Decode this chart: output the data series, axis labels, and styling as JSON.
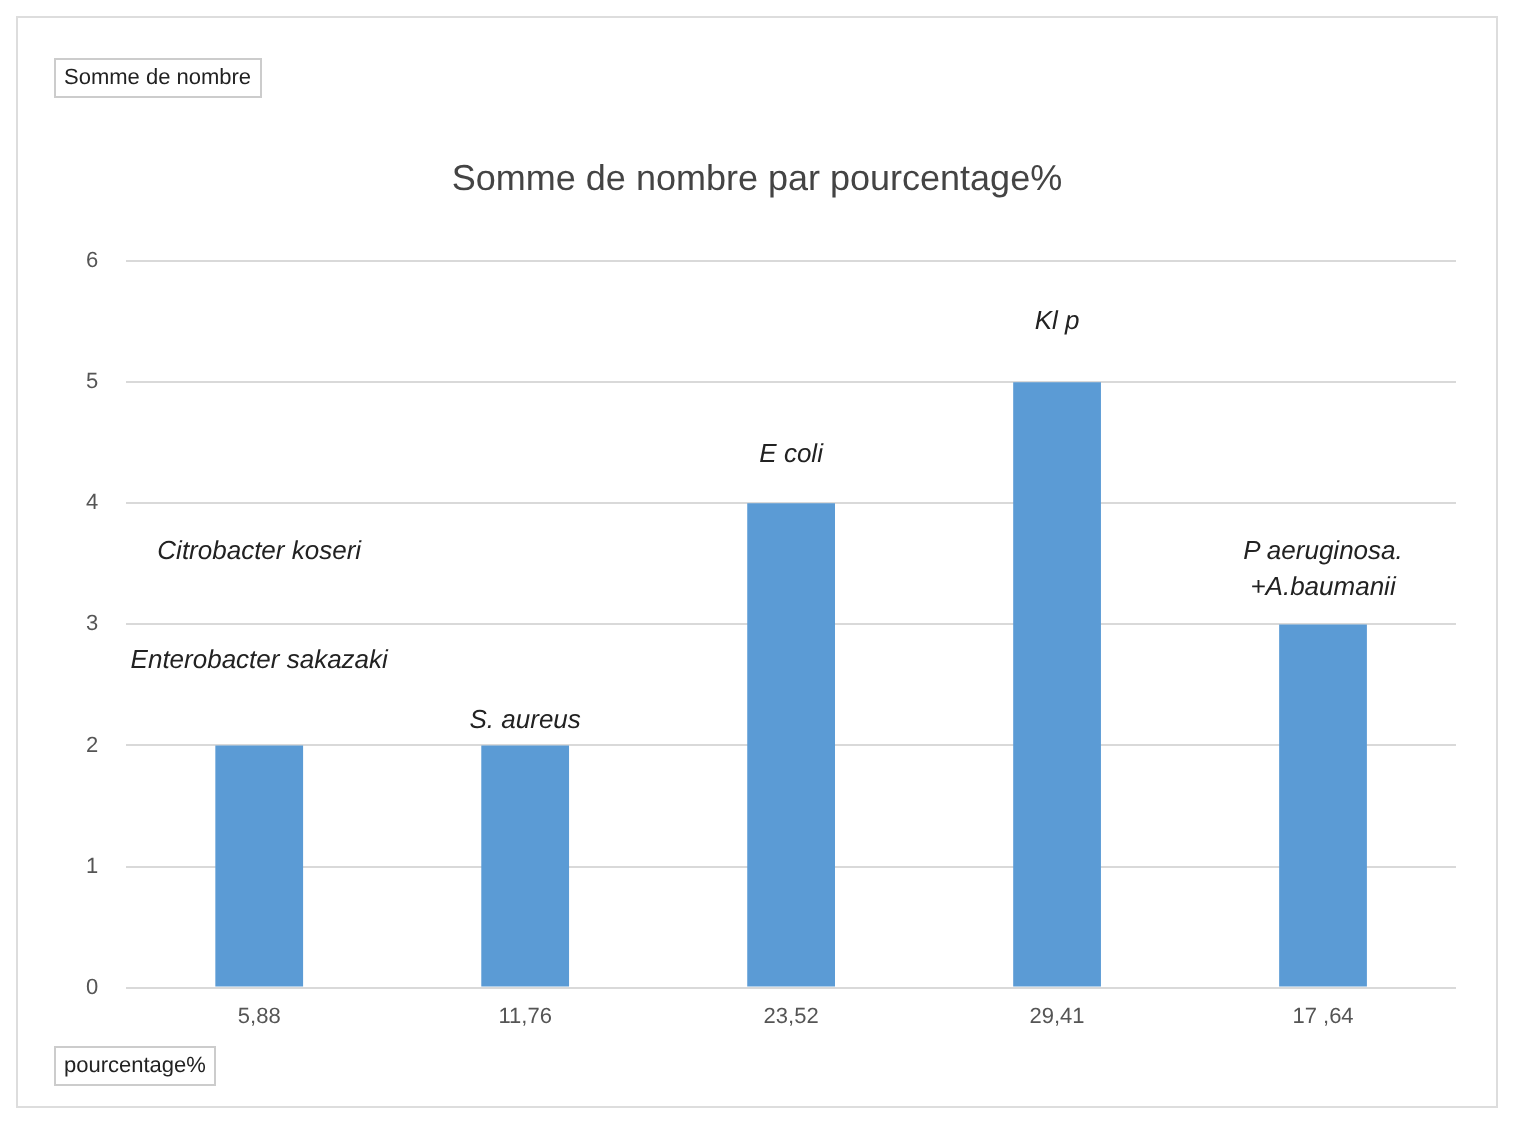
{
  "chart_data": {
    "type": "bar",
    "title": "Somme de nombre par pourcentage%",
    "xlabel": "pourcentage%",
    "categories": [
      "5,88",
      "11,76",
      "23,52",
      "29,41",
      "17 ,64"
    ],
    "values": [
      2,
      2,
      4,
      5,
      3
    ],
    "color": "#5b9bd5",
    "ylim": [
      0,
      6
    ],
    "yticks": [
      0,
      1,
      2,
      3,
      4,
      5,
      6
    ],
    "grid": "y",
    "legend": false,
    "annotations": [
      "Somme de nombre",
      "Citrobacter koseri",
      "Enterobacter sakazaki",
      "S. aureus",
      "E coli",
      "Kl p",
      "P aeruginosa.",
      "+A.baumanii"
    ]
  }
}
